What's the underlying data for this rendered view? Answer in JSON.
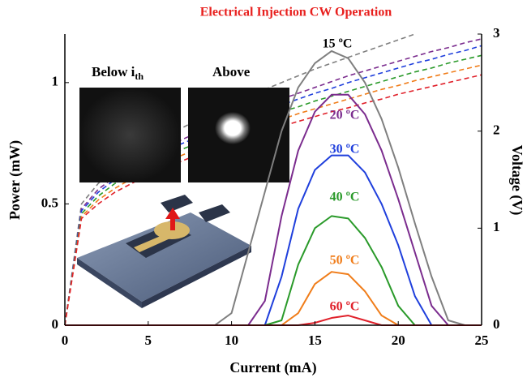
{
  "chart_data": {
    "type": "line",
    "title": "Electrical Injection CW Operation",
    "x_label": "Current (mA)",
    "y_label": "Power (mW)",
    "y2_label": "Voltage (V)",
    "inset_labels": [
      {
        "text": "Below i",
        "sub": "th"
      },
      {
        "text": "Above"
      }
    ],
    "xlim": [
      0,
      25
    ],
    "xticks": [
      0,
      5,
      10,
      15,
      20,
      25
    ],
    "ylim": [
      0,
      1.2
    ],
    "yticks": [
      0,
      0.5,
      1
    ],
    "y2lim": [
      0,
      3
    ],
    "y2ticks": [
      0,
      1,
      2,
      3
    ],
    "x": [
      0,
      1,
      2,
      3,
      4,
      5,
      6,
      7,
      8,
      9,
      10,
      11,
      12,
      13,
      14,
      15,
      16,
      17,
      18,
      19,
      20,
      21,
      22,
      23,
      24,
      25
    ],
    "series": [
      {
        "name": "15 ºC",
        "color": "#7f7f7f",
        "label_color": "#000000",
        "values": [
          0,
          0,
          0,
          0,
          0,
          0,
          0,
          0,
          0,
          0,
          0.05,
          0.3,
          0.55,
          0.8,
          0.98,
          1.08,
          1.13,
          1.1,
          1.0,
          0.85,
          0.65,
          0.42,
          0.2,
          0.02,
          0,
          0
        ]
      },
      {
        "name": "20 ºC",
        "color": "#7b2c8e",
        "label_color": "#7b2c8e",
        "values": [
          0,
          0,
          0,
          0,
          0,
          0,
          0,
          0,
          0,
          0,
          0,
          0,
          0.1,
          0.45,
          0.72,
          0.88,
          0.95,
          0.95,
          0.87,
          0.72,
          0.52,
          0.3,
          0.08,
          0,
          0,
          0
        ]
      },
      {
        "name": "30 ºC",
        "color": "#1f3fdc",
        "label_color": "#1f3fdc",
        "values": [
          0,
          0,
          0,
          0,
          0,
          0,
          0,
          0,
          0,
          0,
          0,
          0,
          0,
          0.2,
          0.48,
          0.64,
          0.7,
          0.7,
          0.63,
          0.5,
          0.33,
          0.12,
          0,
          0,
          0,
          0
        ]
      },
      {
        "name": "40 ºC",
        "color": "#2a9a2a",
        "label_color": "#2a9a2a",
        "values": [
          0,
          0,
          0,
          0,
          0,
          0,
          0,
          0,
          0,
          0,
          0,
          0,
          0,
          0.02,
          0.25,
          0.4,
          0.45,
          0.44,
          0.36,
          0.24,
          0.08,
          0,
          0,
          0,
          0,
          0
        ]
      },
      {
        "name": "50 ºC",
        "color": "#f07d1a",
        "label_color": "#f07d1a",
        "values": [
          0,
          0,
          0,
          0,
          0,
          0,
          0,
          0,
          0,
          0,
          0,
          0,
          0,
          0,
          0.05,
          0.17,
          0.22,
          0.21,
          0.14,
          0.04,
          0,
          0,
          0,
          0,
          0,
          0
        ]
      },
      {
        "name": "60 ºC",
        "color": "#e0202a",
        "label_color": "#e0202a",
        "values": [
          0,
          0,
          0,
          0,
          0,
          0,
          0,
          0,
          0,
          0,
          0,
          0,
          0,
          0,
          0,
          0.01,
          0.03,
          0.04,
          0.02,
          0,
          0,
          0,
          0,
          0,
          0,
          0
        ]
      },
      {
        "color": "#7f7f7f",
        "axis": "y2",
        "style": "dashed",
        "values": [
          0,
          1.25,
          1.46,
          1.61,
          1.73,
          1.84,
          1.94,
          2.03,
          2.12,
          2.2,
          2.28,
          2.36,
          2.43,
          2.5,
          2.57,
          2.64,
          2.7,
          2.76,
          2.82,
          2.88,
          2.94,
          3.0,
          null,
          null,
          null,
          null
        ]
      },
      {
        "color": "#7b2c8e",
        "axis": "y2",
        "style": "dashed",
        "values": [
          0,
          1.2,
          1.4,
          1.53,
          1.64,
          1.74,
          1.83,
          1.91,
          1.99,
          2.06,
          2.13,
          2.2,
          2.27,
          2.33,
          2.39,
          2.45,
          2.51,
          2.57,
          2.62,
          2.67,
          2.72,
          2.77,
          2.82,
          2.86,
          2.91,
          2.95
        ]
      },
      {
        "color": "#1f3fdc",
        "axis": "y2",
        "style": "dashed",
        "values": [
          0,
          1.18,
          1.37,
          1.5,
          1.61,
          1.7,
          1.79,
          1.87,
          1.94,
          2.01,
          2.08,
          2.15,
          2.21,
          2.27,
          2.33,
          2.39,
          2.44,
          2.5,
          2.55,
          2.6,
          2.65,
          2.7,
          2.74,
          2.79,
          2.83,
          2.88
        ]
      },
      {
        "color": "#2a9a2a",
        "axis": "y2",
        "style": "dashed",
        "values": [
          0,
          1.15,
          1.33,
          1.46,
          1.56,
          1.65,
          1.73,
          1.81,
          1.88,
          1.95,
          2.01,
          2.08,
          2.14,
          2.2,
          2.25,
          2.31,
          2.36,
          2.41,
          2.46,
          2.51,
          2.56,
          2.61,
          2.65,
          2.7,
          2.74,
          2.78
        ]
      },
      {
        "color": "#f07d1a",
        "axis": "y2",
        "style": "dashed",
        "values": [
          0,
          1.12,
          1.29,
          1.41,
          1.51,
          1.6,
          1.68,
          1.75,
          1.82,
          1.89,
          1.95,
          2.01,
          2.07,
          2.12,
          2.18,
          2.23,
          2.28,
          2.33,
          2.38,
          2.43,
          2.47,
          2.52,
          2.56,
          2.6,
          2.64,
          2.68
        ]
      },
      {
        "color": "#e0202a",
        "axis": "y2",
        "style": "dashed",
        "values": [
          0,
          1.1,
          1.25,
          1.37,
          1.46,
          1.55,
          1.62,
          1.69,
          1.76,
          1.82,
          1.88,
          1.94,
          1.99,
          2.05,
          2.1,
          2.15,
          2.2,
          2.24,
          2.29,
          2.33,
          2.38,
          2.42,
          2.46,
          2.5,
          2.54,
          2.58
        ]
      }
    ]
  }
}
